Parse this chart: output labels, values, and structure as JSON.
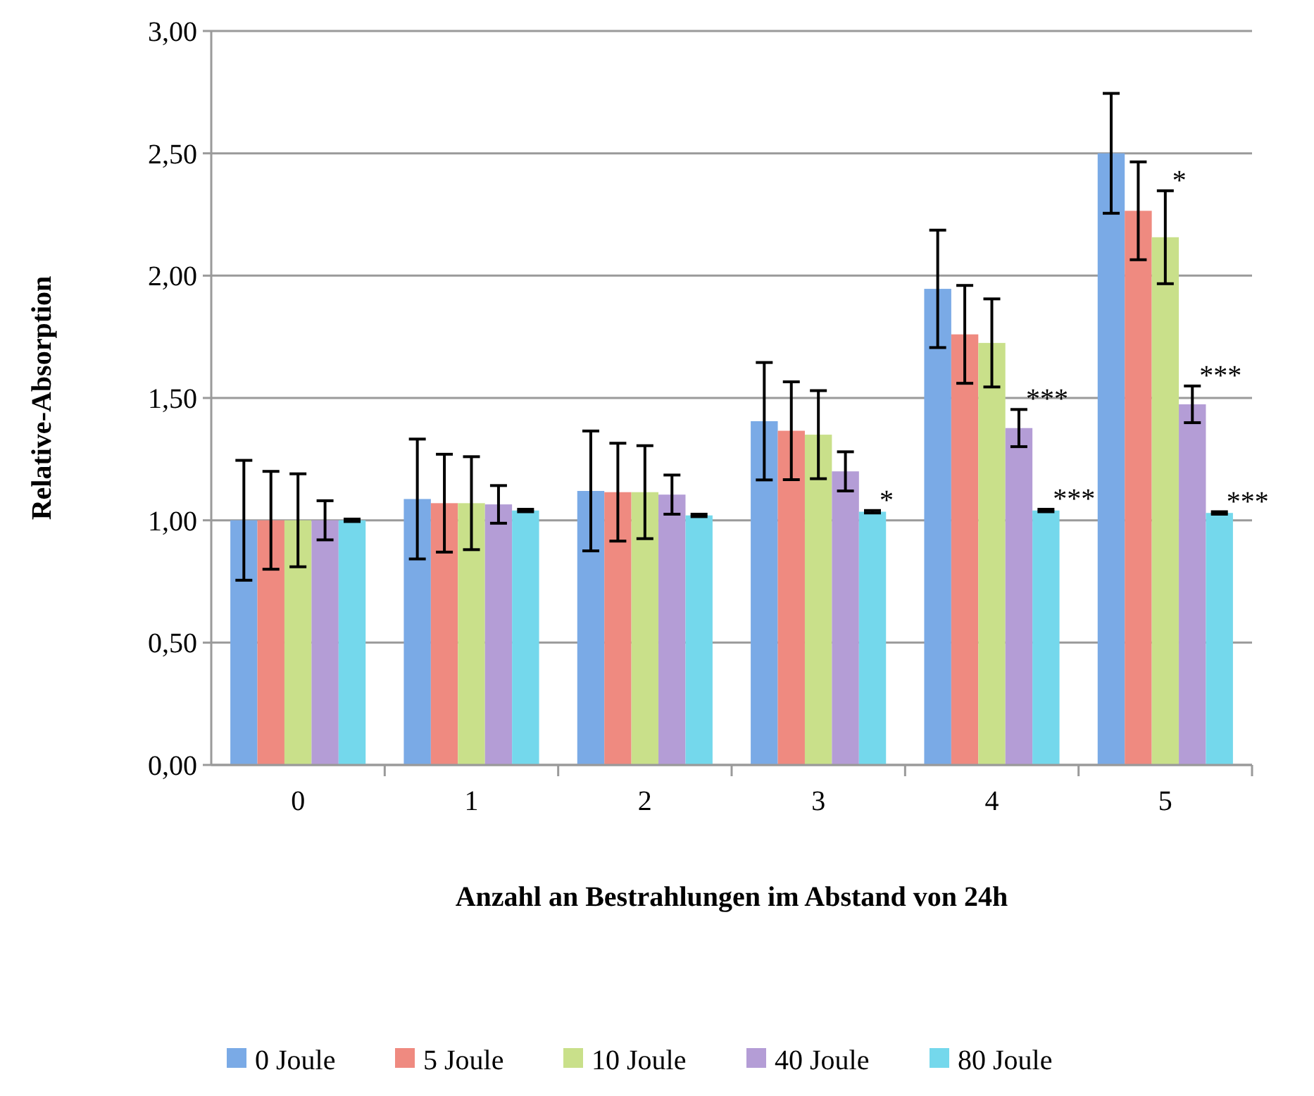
{
  "chart_data": {
    "type": "bar",
    "xlabel": "Anzahl an Bestrahlungen im Abstand von 24h",
    "ylabel": "Relative-Absorption",
    "categories": [
      "0",
      "1",
      "2",
      "3",
      "4",
      "5"
    ],
    "series": [
      {
        "name": "0 Joule",
        "color": "#7aaae6",
        "values": [
          1.0,
          1.087,
          1.12,
          1.405,
          1.946,
          2.5
        ],
        "errors": [
          0.245,
          0.245,
          0.245,
          0.24,
          0.24,
          0.245
        ]
      },
      {
        "name": "5 Joule",
        "color": "#ef8a80",
        "values": [
          1.0,
          1.07,
          1.115,
          1.366,
          1.76,
          2.265
        ],
        "errors": [
          0.2,
          0.2,
          0.2,
          0.2,
          0.2,
          0.2
        ]
      },
      {
        "name": "10 Joule",
        "color": "#c9e08a",
        "values": [
          1.0,
          1.07,
          1.115,
          1.35,
          1.725,
          2.157
        ],
        "errors": [
          0.19,
          0.19,
          0.19,
          0.18,
          0.18,
          0.19
        ]
      },
      {
        "name": "40 Joule",
        "color": "#b49dd6",
        "values": [
          1.0,
          1.065,
          1.105,
          1.2,
          1.377,
          1.474
        ],
        "errors": [
          0.08,
          0.077,
          0.08,
          0.08,
          0.076,
          0.075
        ]
      },
      {
        "name": "80 Joule",
        "color": "#74d8ec",
        "values": [
          1.0,
          1.04,
          1.02,
          1.035,
          1.04,
          1.03
        ],
        "errors": [
          0.005,
          0.005,
          0.005,
          0.005,
          0.005,
          0.005
        ]
      }
    ],
    "ylim": [
      0,
      3
    ],
    "yticks": [
      {
        "value": 0,
        "label": "0,00"
      },
      {
        "value": 0.5,
        "label": "0,50"
      },
      {
        "value": 1,
        "label": "1,00"
      },
      {
        "value": 1.5,
        "label": "1,50"
      },
      {
        "value": 2,
        "label": "2,00"
      },
      {
        "value": 2.5,
        "label": "2,50"
      },
      {
        "value": 3,
        "label": "3,00"
      }
    ],
    "grid": "y",
    "legend": "bottom",
    "annotations": [
      "*",
      "***",
      "***",
      "*",
      "***",
      "***"
    ]
  }
}
